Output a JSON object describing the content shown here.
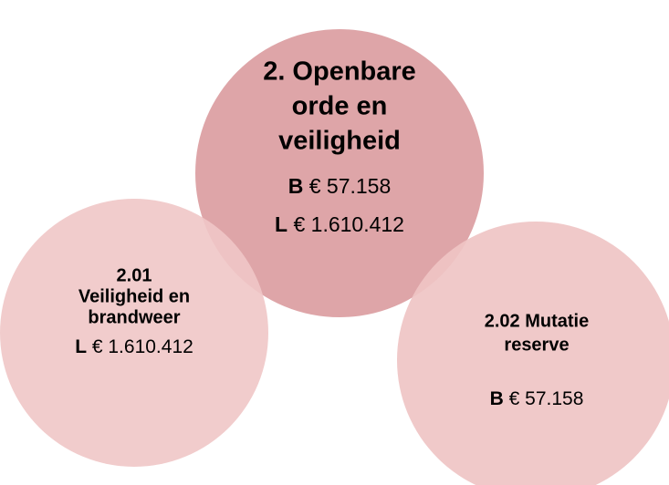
{
  "nodes": [
    {
      "title": [
        "2. Openbare",
        "orde en",
        "veiligheid"
      ],
      "lines": [
        {
          "prefix": "B",
          "amount": "€ 57.158"
        },
        {
          "prefix": "L",
          "amount": "€ 1.610.412"
        }
      ]
    },
    {
      "title": [
        "2.01",
        "Veiligheid en",
        "brandweer"
      ],
      "lines": [
        {
          "prefix": "L",
          "amount": "€ 1.610.412"
        }
      ]
    },
    {
      "title": [
        "2.02 Mutatie",
        "reserve"
      ],
      "lines": [
        {
          "prefix": "B",
          "amount": "€ 57.158"
        }
      ]
    }
  ]
}
